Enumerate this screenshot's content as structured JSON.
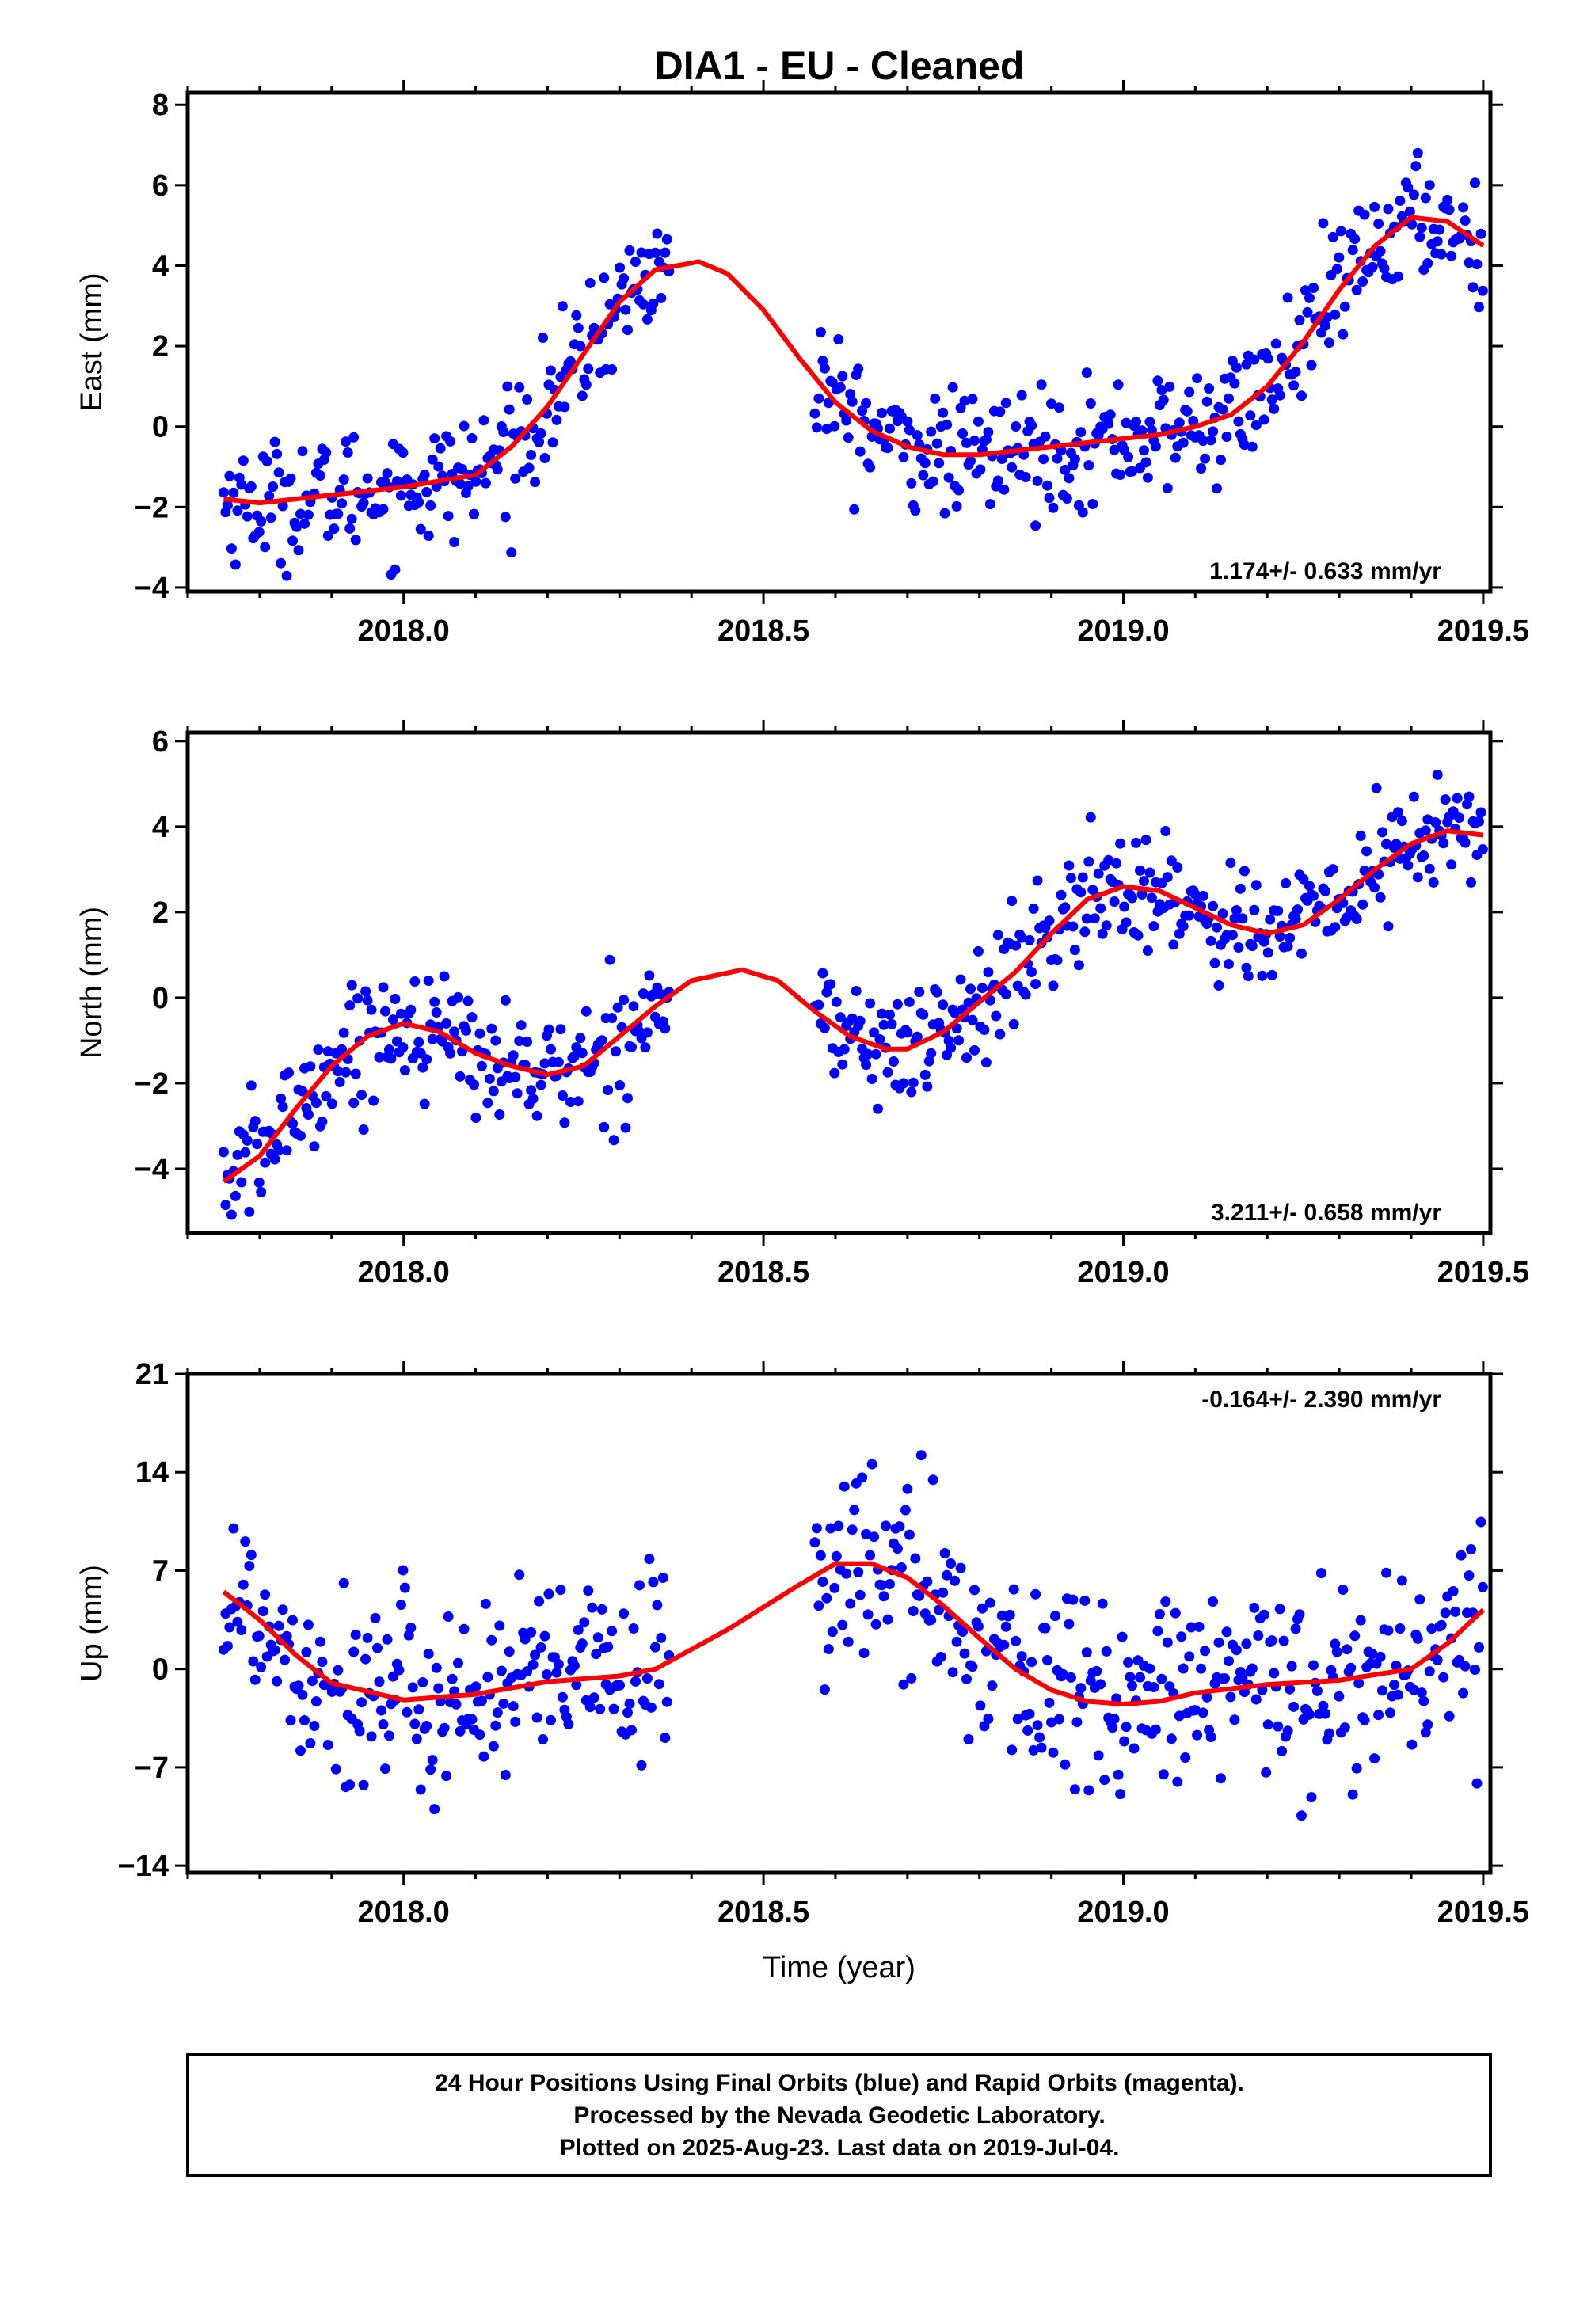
{
  "title": "DIA1  - EU - Cleaned",
  "footer": {
    "line1": "24 Hour Positions Using Final Orbits (blue) and Rapid Orbits (magenta).",
    "line2": "Processed by the Nevada Geodetic Laboratory.",
    "line3": "Plotted on 2025-Aug-23. Last data on 2019-Jul-04."
  },
  "colors": {
    "points": "#0000ff",
    "fit": "#ff0000",
    "frame": "#000000"
  },
  "chart_data": [
    {
      "type": "scatter",
      "ylabel": "East (mm)",
      "xlabel": "",
      "rate": "1.174+/- 0.633 mm/yr",
      "xlim": [
        2017.7,
        2019.51
      ],
      "ylim": [
        -4.1,
        8.3
      ],
      "xticks": [
        2018.0,
        2018.5,
        2019.0,
        2019.5
      ],
      "xtick_labels": [
        "2018.0",
        "2018.5",
        "2019.0",
        "2019.5"
      ],
      "yticks": [
        -4,
        -2,
        0,
        2,
        4,
        6,
        8
      ],
      "ytick_labels": [
        "−4",
        "−2",
        "0",
        "2",
        "4",
        "6",
        "8"
      ],
      "gaps": [
        [
          2018.37,
          2018.57
        ]
      ],
      "series": [
        {
          "name": "Final Orbits",
          "color": "#0000ff",
          "kind": "daily-points"
        },
        {
          "name": "Fit",
          "color": "#ff0000",
          "kind": "fitted-curve",
          "x": [
            2017.75,
            2017.8,
            2017.9,
            2018.0,
            2018.1,
            2018.15,
            2018.2,
            2018.25,
            2018.3,
            2018.35,
            2018.41,
            2018.45,
            2018.5,
            2018.55,
            2018.6,
            2018.65,
            2018.7,
            2018.75,
            2018.8,
            2018.9,
            2019.0,
            2019.05,
            2019.1,
            2019.15,
            2019.2,
            2019.25,
            2019.3,
            2019.35,
            2019.4,
            2019.45,
            2019.5
          ],
          "y": [
            -1.8,
            -1.9,
            -1.7,
            -1.5,
            -1.2,
            -0.5,
            0.5,
            1.8,
            3.1,
            3.9,
            4.1,
            3.8,
            2.9,
            1.7,
            0.6,
            -0.1,
            -0.5,
            -0.7,
            -0.7,
            -0.5,
            -0.3,
            -0.2,
            0.0,
            0.3,
            1.0,
            2.1,
            3.4,
            4.5,
            5.2,
            5.1,
            4.5
          ]
        }
      ]
    },
    {
      "type": "scatter",
      "ylabel": "North (mm)",
      "xlabel": "",
      "rate": "3.211+/- 0.658 mm/yr",
      "xlim": [
        2017.7,
        2019.51
      ],
      "ylim": [
        -5.5,
        6.2
      ],
      "xticks": [
        2018.0,
        2018.5,
        2019.0,
        2019.5
      ],
      "xtick_labels": [
        "2018.0",
        "2018.5",
        "2019.0",
        "2019.5"
      ],
      "yticks": [
        -4,
        -2,
        0,
        2,
        4,
        6
      ],
      "ytick_labels": [
        "−4",
        "−2",
        "0",
        "2",
        "4",
        "6"
      ],
      "gaps": [
        [
          2018.37,
          2018.57
        ]
      ],
      "series": [
        {
          "name": "Final Orbits",
          "color": "#0000ff",
          "kind": "daily-points"
        },
        {
          "name": "Fit",
          "color": "#ff0000",
          "kind": "fitted-curve",
          "x": [
            2017.75,
            2017.8,
            2017.85,
            2017.9,
            2017.95,
            2018.0,
            2018.05,
            2018.1,
            2018.15,
            2018.2,
            2018.25,
            2018.3,
            2018.35,
            2018.4,
            2018.47,
            2018.52,
            2018.57,
            2018.62,
            2018.67,
            2018.7,
            2018.75,
            2018.8,
            2018.85,
            2018.9,
            2018.95,
            2019.0,
            2019.05,
            2019.1,
            2019.15,
            2019.2,
            2019.25,
            2019.3,
            2019.35,
            2019.4,
            2019.45,
            2019.5
          ],
          "y": [
            -4.3,
            -3.7,
            -2.6,
            -1.6,
            -0.9,
            -0.6,
            -0.8,
            -1.3,
            -1.6,
            -1.8,
            -1.6,
            -0.9,
            -0.2,
            0.4,
            0.65,
            0.4,
            -0.3,
            -0.9,
            -1.2,
            -1.2,
            -0.8,
            -0.1,
            0.6,
            1.5,
            2.3,
            2.6,
            2.5,
            2.1,
            1.7,
            1.5,
            1.7,
            2.3,
            3.0,
            3.6,
            3.9,
            3.8
          ]
        }
      ]
    },
    {
      "type": "scatter",
      "ylabel": "Up (mm)",
      "xlabel": "Time (year)",
      "rate": "-0.164+/- 2.390 mm/yr",
      "xlim": [
        2017.7,
        2019.51
      ],
      "ylim": [
        -14.5,
        21.0
      ],
      "xticks": [
        2018.0,
        2018.5,
        2019.0,
        2019.5
      ],
      "xtick_labels": [
        "2018.0",
        "2018.5",
        "2019.0",
        "2019.5"
      ],
      "yticks": [
        -14,
        -7,
        0,
        7,
        14,
        21
      ],
      "ytick_labels": [
        "−14",
        "−7",
        "0",
        "7",
        "14",
        "21"
      ],
      "gaps": [
        [
          2018.37,
          2018.57
        ]
      ],
      "series": [
        {
          "name": "Final Orbits",
          "color": "#0000ff",
          "kind": "daily-points"
        },
        {
          "name": "Fit",
          "color": "#ff0000",
          "kind": "fitted-curve",
          "x": [
            2017.75,
            2017.8,
            2017.85,
            2017.9,
            2018.0,
            2018.1,
            2018.2,
            2018.3,
            2018.35,
            2018.45,
            2018.55,
            2018.6,
            2018.65,
            2018.7,
            2018.75,
            2018.8,
            2018.85,
            2018.9,
            2018.95,
            2019.0,
            2019.05,
            2019.1,
            2019.2,
            2019.3,
            2019.4,
            2019.45,
            2019.5
          ],
          "y": [
            5.5,
            3.5,
            1.0,
            -1.0,
            -2.2,
            -1.8,
            -0.9,
            -0.5,
            0.0,
            2.8,
            6.0,
            7.5,
            7.5,
            6.5,
            4.5,
            2.2,
            0.0,
            -1.5,
            -2.3,
            -2.5,
            -2.3,
            -1.7,
            -1.1,
            -0.8,
            0.0,
            1.8,
            4.2
          ]
        }
      ]
    }
  ]
}
